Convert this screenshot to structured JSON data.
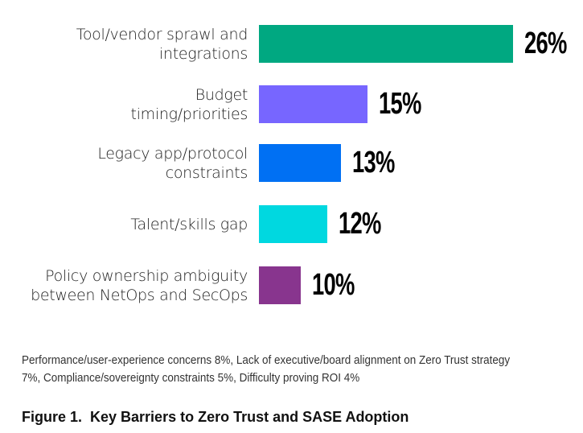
{
  "chart_data": {
    "type": "bar",
    "orientation": "horizontal",
    "title": "Figure 1.  Key Barriers to Zero Trust and SASE Adoption",
    "xlabel": "",
    "ylabel": "",
    "grid": false,
    "categories": [
      [
        "Tool/vendor sprawl and",
        "integrations"
      ],
      [
        "Budget",
        "timing/priorities"
      ],
      [
        "Legacy app/protocol",
        "constraints"
      ],
      [
        "Talent/skills gap"
      ],
      [
        "Policy ownership ambiguity",
        "between NetOps and SecOps"
      ]
    ],
    "values": [
      26,
      15,
      13,
      12,
      10
    ],
    "value_labels": [
      "26%",
      "15%",
      "13%",
      "12%",
      "10%"
    ],
    "colors": [
      "#00a881",
      "#7766ff",
      "#0070f3",
      "#00d8e0",
      "#88358e"
    ],
    "footnote": "Performance/user-experience concerns 8%, Lack of executive/board alignment on Zero Trust strategy 7%, Compliance/sovereignty constraints 5%, Difficulty proving ROI 4%"
  }
}
